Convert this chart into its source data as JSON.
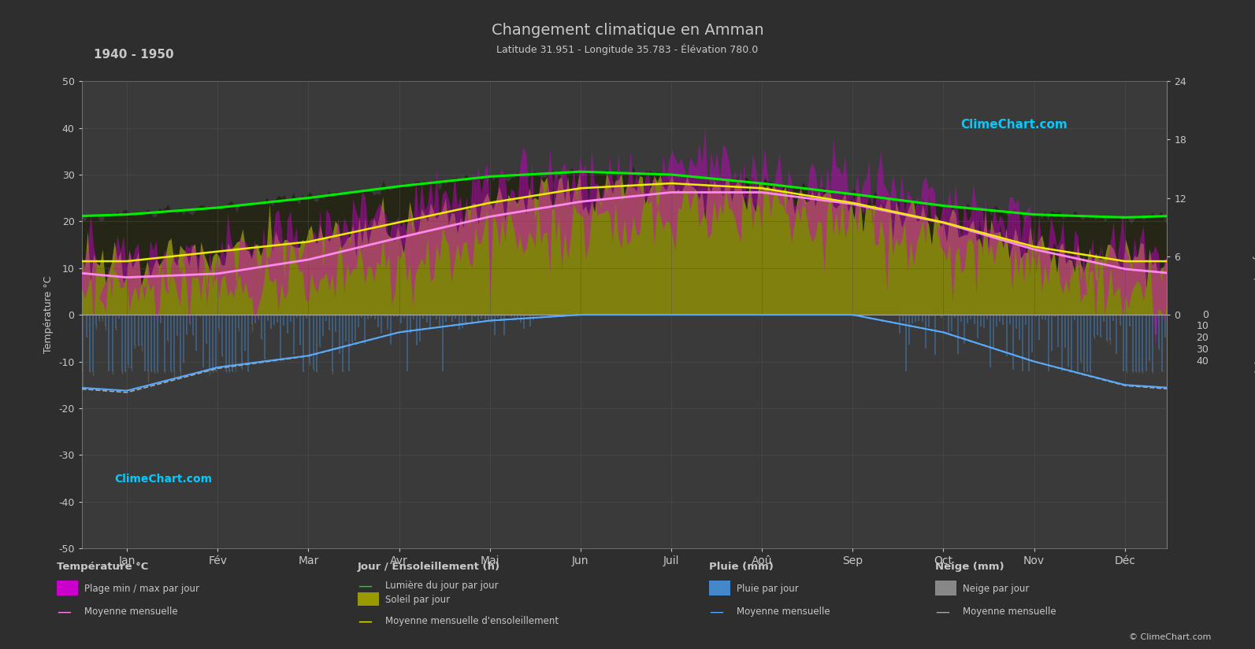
{
  "title": "Changement climatique en Amman",
  "subtitle": "Latitude 31.951 - Longitude 35.783 - Élévation 780.0",
  "period": "1940 - 1950",
  "bg_color": "#2e2e2e",
  "plot_bg_color": "#3a3a3a",
  "grid_color": "#555555",
  "text_color": "#c8c8c8",
  "months": [
    "Jan",
    "Fév",
    "Mar",
    "Avr",
    "Mai",
    "Jun",
    "Juil",
    "Aoû",
    "Sep",
    "Oct",
    "Nov",
    "Déc"
  ],
  "temp_min_monthly": [
    4.5,
    5.0,
    7.5,
    11.5,
    15.5,
    19.0,
    21.5,
    22.0,
    19.5,
    15.5,
    10.5,
    6.5
  ],
  "temp_max_monthly": [
    11.5,
    12.5,
    16.0,
    21.5,
    26.5,
    29.5,
    31.0,
    30.5,
    28.0,
    24.0,
    17.5,
    13.0
  ],
  "temp_mean_monthly": [
    8.0,
    8.8,
    11.8,
    16.5,
    21.0,
    24.2,
    26.2,
    26.2,
    23.7,
    19.7,
    14.0,
    9.8
  ],
  "daylight_monthly": [
    10.3,
    11.0,
    12.0,
    13.2,
    14.2,
    14.7,
    14.4,
    13.5,
    12.4,
    11.2,
    10.3,
    10.0
  ],
  "sunshine_monthly": [
    5.5,
    6.5,
    7.5,
    9.5,
    11.5,
    13.0,
    13.5,
    13.0,
    11.5,
    9.5,
    7.0,
    5.5
  ],
  "rain_monthly_mm": [
    65,
    45,
    35,
    15,
    5,
    0,
    0,
    0,
    0,
    15,
    40,
    60
  ],
  "snow_monthly_mm": [
    5,
    3,
    1,
    0,
    0,
    0,
    0,
    0,
    0,
    0,
    0,
    2
  ],
  "temp_ylim": [
    -50,
    50
  ],
  "sun_ylim": [
    0,
    24
  ],
  "rain_ylim_mm": [
    0,
    40
  ],
  "rain_scale": 0.25,
  "sun_scale": 2.0833
}
